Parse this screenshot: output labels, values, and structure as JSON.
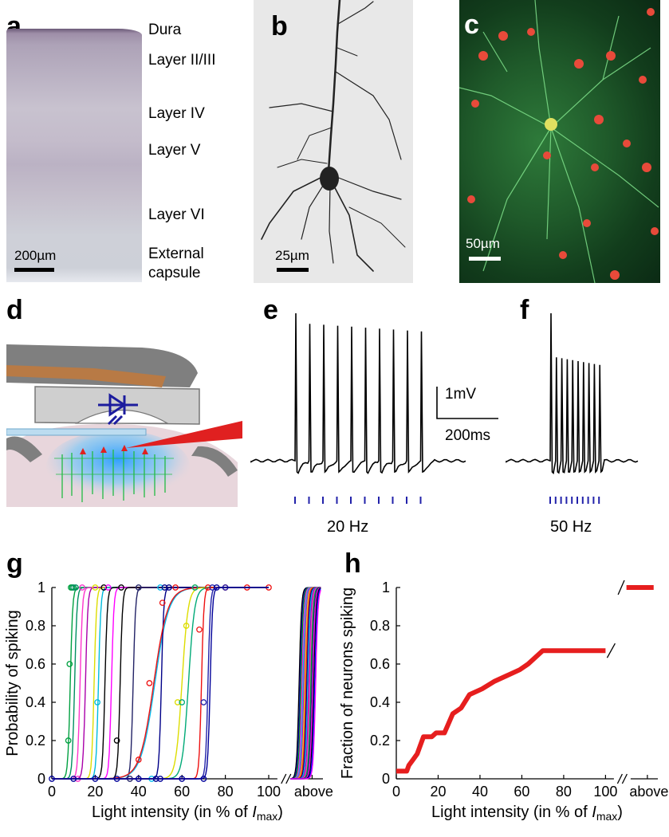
{
  "panels": {
    "a": {
      "letter": "a",
      "layers": [
        "Dura",
        "Layer II/III",
        "Layer IV",
        "Layer V",
        "Layer VI",
        "External",
        "capsule"
      ],
      "scale": "200µm"
    },
    "b": {
      "letter": "b",
      "scale": "25µm"
    },
    "c": {
      "letter": "c",
      "scale": "50µm"
    },
    "d": {
      "letter": "d"
    },
    "e": {
      "letter": "e",
      "freq": "20 Hz",
      "scale_v": "1mV",
      "scale_t": "200ms"
    },
    "f": {
      "letter": "f",
      "freq": "50 Hz"
    },
    "g": {
      "letter": "g"
    },
    "h": {
      "letter": "h"
    }
  },
  "chart_data": [
    {
      "type": "line",
      "panel": "g",
      "ylabel": "Probability of spiking",
      "xlabel_main": "Light intensity (in % of ",
      "xlabel_italic": "I",
      "xlabel_sub": "max",
      "xlabel_close": ")",
      "xticks": [
        "0",
        "20",
        "40",
        "60",
        "80",
        "100",
        "above"
      ],
      "yticks": [
        "0",
        "0.2",
        "0.4",
        "0.6",
        "0.8",
        "1"
      ],
      "xlim": [
        0,
        125
      ],
      "ylim": [
        0,
        1
      ],
      "series": [
        {
          "color": "#00a040",
          "mid": 8.5,
          "points": [
            [
              7.6,
              0.2
            ],
            [
              8.2,
              0.6
            ],
            [
              8.8,
              1
            ],
            [
              9.4,
              1
            ]
          ]
        },
        {
          "color": "#009060",
          "mid": 10.5,
          "points": [
            [
              10,
              1
            ],
            [
              11,
              1
            ]
          ]
        },
        {
          "color": "#ff33cc",
          "mid": 13,
          "points": [
            [
              12,
              0
            ],
            [
              14,
              1
            ]
          ]
        },
        {
          "color": "#aa00aa",
          "mid": 15.5,
          "points": []
        },
        {
          "color": "#dddd00",
          "mid": 19.5,
          "points": [
            [
              20,
              1
            ]
          ]
        },
        {
          "color": "#00bbdd",
          "mid": 21.5,
          "points": [
            [
              21,
              0.4
            ]
          ]
        },
        {
          "color": "#000000",
          "mid": 24.5,
          "points": [
            [
              24,
              1
            ]
          ]
        },
        {
          "color": "#ff00ff",
          "mid": 27.5,
          "points": [
            [
              26,
              1
            ]
          ]
        },
        {
          "color": "#000000",
          "mid": 31.5,
          "points": [
            [
              30,
              0.2
            ],
            [
              32,
              1
            ]
          ]
        },
        {
          "color": "#222266",
          "mid": 37.5,
          "points": [
            [
              36,
              0
            ],
            [
              40,
              1
            ]
          ]
        },
        {
          "color": "#00bbee",
          "mid": 47.5,
          "points": [
            [
              46,
              0
            ],
            [
              50,
              1
            ]
          ]
        },
        {
          "color": "#000088",
          "mid": 50.5,
          "points": [
            [
              48,
              0
            ],
            [
              52,
              1
            ],
            [
              54,
              1
            ]
          ]
        },
        {
          "color": "#ee1111",
          "mid": 47,
          "points": [
            [
              40,
              0.1
            ],
            [
              45,
              0.5
            ],
            [
              51,
              0.92
            ],
            [
              57,
              1
            ],
            [
              80,
              1
            ],
            [
              90,
              1
            ],
            [
              100,
              1
            ]
          ]
        },
        {
          "color": "#dddd00",
          "mid": 60,
          "points": [
            [
              58,
              0.4
            ],
            [
              62,
              0.8
            ],
            [
              66,
              1
            ]
          ]
        },
        {
          "color": "#00aa77",
          "mid": 63,
          "points": [
            [
              60,
              0.4
            ],
            [
              66,
              1
            ]
          ]
        },
        {
          "color": "#ee1111",
          "mid": 69,
          "points": [
            [
              68,
              0.78
            ],
            [
              72,
              1
            ]
          ]
        },
        {
          "color": "#2222aa",
          "mid": 72,
          "points": [
            [
              70,
              0.4
            ],
            [
              74,
              1
            ],
            [
              80,
              1
            ]
          ]
        },
        {
          "color": "#000099",
          "mid": 73,
          "points": [
            [
              0,
              0
            ],
            [
              10,
              0
            ],
            [
              20,
              0
            ],
            [
              30,
              0
            ],
            [
              40,
              0
            ],
            [
              50,
              0
            ],
            [
              60,
              0
            ],
            [
              70,
              0
            ],
            [
              76,
              1
            ]
          ]
        }
      ],
      "above_colors": [
        "#000000",
        "#0000aa",
        "#00aa00",
        "#ff00ff",
        "#00cccc",
        "#cc00cc",
        "#dddd00",
        "#ee1111",
        "#000088",
        "#00bbee",
        "#aa00aa",
        "#ff33cc",
        "#00a040",
        "#222266",
        "#ff00ff",
        "#000000",
        "#0000ff",
        "#ff00ff"
      ]
    },
    {
      "type": "line",
      "panel": "h",
      "ylabel": "Fraction of neurons spiking",
      "xlabel_main": "Light intensity (in % of ",
      "xlabel_italic": "I",
      "xlabel_sub": "max",
      "xlabel_close": ")",
      "xticks": [
        "0",
        "20",
        "40",
        "60",
        "80",
        "100",
        "above"
      ],
      "yticks": [
        "0",
        "0.2",
        "0.4",
        "0.6",
        "0.8",
        "1"
      ],
      "xlim": [
        0,
        125
      ],
      "ylim": [
        0,
        1
      ],
      "color": "#e61e1e",
      "x": [
        0,
        5,
        6,
        8,
        10,
        13,
        17,
        19,
        23,
        27,
        31,
        35,
        41,
        47,
        53,
        59,
        63,
        70,
        100
      ],
      "y": [
        0.04,
        0.04,
        0.07,
        0.1,
        0.13,
        0.22,
        0.22,
        0.24,
        0.24,
        0.34,
        0.37,
        0.44,
        0.47,
        0.51,
        0.54,
        0.57,
        0.6,
        0.67,
        0.67
      ],
      "above_value": 1
    }
  ]
}
